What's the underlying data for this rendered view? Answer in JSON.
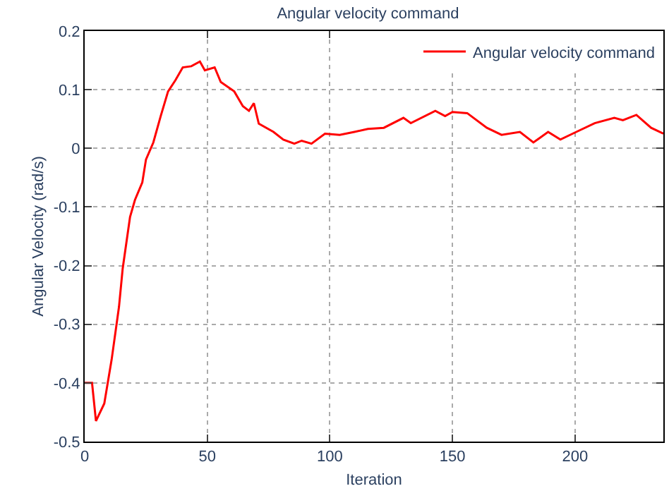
{
  "chart_data": {
    "type": "line",
    "title": "Angular velocity command",
    "xlabel": "Iteration",
    "ylabel": "Angular Velocity (rad/s)",
    "xlim": [
      0,
      236
    ],
    "xticks": [
      0,
      50,
      100,
      150,
      200
    ],
    "ylim": [
      -0.5,
      0.2
    ],
    "yticks": [
      -0.5,
      -0.4,
      -0.3,
      -0.2,
      -0.1,
      0,
      0.1,
      0.2
    ],
    "grid": true,
    "legend": "top right",
    "line_style": "solid",
    "marker": "none",
    "series": [
      {
        "name": "Angular velocity command",
        "color": "#ff0000",
        "x": [
          0,
          3,
          4.6,
          8,
          11,
          14,
          15.5,
          18.5,
          20.5,
          23.5,
          25,
          28,
          31,
          34,
          37,
          40,
          43.5,
          47,
          49,
          53,
          55.5,
          61,
          64.5,
          67,
          69,
          71,
          77,
          81,
          85.5,
          88.5,
          92.5,
          98,
          104,
          110,
          115.5,
          122,
          130,
          133,
          143,
          147,
          150,
          156,
          164,
          170,
          177.5,
          183,
          189,
          194,
          200.5,
          208,
          216,
          219.5,
          225,
          231,
          236
        ],
        "values": [
          -0.4,
          -0.4,
          -0.465,
          -0.435,
          -0.36,
          -0.27,
          -0.205,
          -0.117,
          -0.088,
          -0.058,
          -0.019,
          0.01,
          0.055,
          0.097,
          0.116,
          0.138,
          0.14,
          0.148,
          0.133,
          0.138,
          0.113,
          0.097,
          0.072,
          0.064,
          0.077,
          0.042,
          0.028,
          0.015,
          0.008,
          0.013,
          0.008,
          0.025,
          0.023,
          0.028,
          0.033,
          0.035,
          0.052,
          0.043,
          0.064,
          0.055,
          0.062,
          0.06,
          0.035,
          0.023,
          0.028,
          0.01,
          0.028,
          0.015,
          0.028,
          0.043,
          0.052,
          0.048,
          0.057,
          0.035,
          0.025
        ]
      }
    ]
  }
}
